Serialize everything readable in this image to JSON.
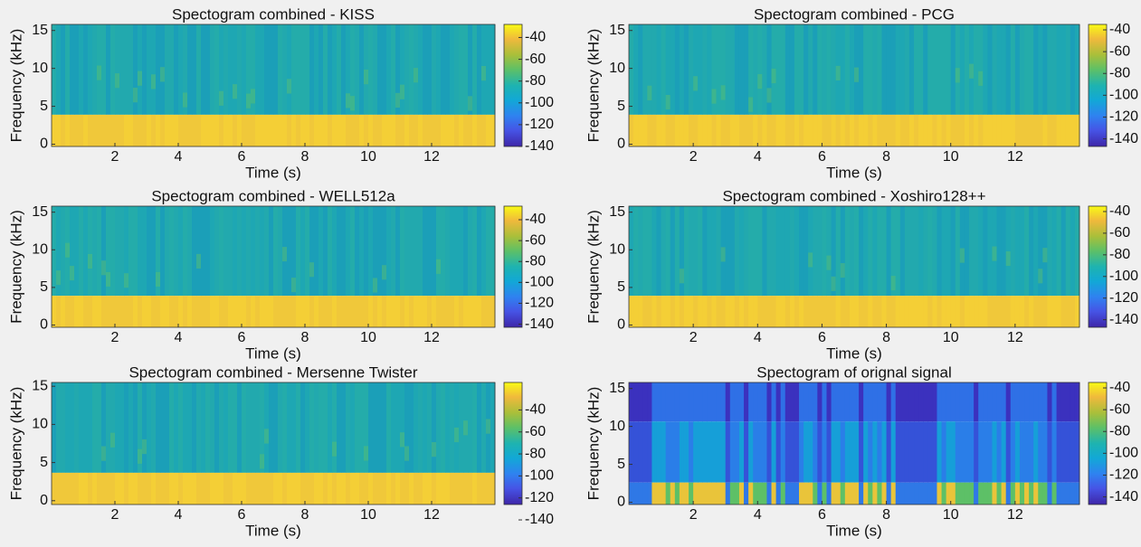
{
  "chart_data": [
    {
      "type": "spectrogram",
      "title": "Spectogram combined - KISS",
      "xlabel": "Time (s)",
      "ylabel": "Frequency (kHz)",
      "xlim": [
        0,
        14
      ],
      "xticks": [
        2,
        4,
        6,
        8,
        10,
        12
      ],
      "ylim": [
        -0.3,
        15.8
      ],
      "yticks": [
        0,
        5,
        10,
        15
      ],
      "clim": [
        -140,
        -28
      ],
      "cticks": [
        -40,
        -60,
        -80,
        -100,
        -120,
        -140
      ]
    },
    {
      "type": "spectrogram",
      "title": "Spectogram combined - PCG",
      "xlabel": "Time (s)",
      "ylabel": "Frequency (kHz)",
      "xlim": [
        0,
        14
      ],
      "xticks": [
        2,
        4,
        6,
        8,
        10,
        12
      ],
      "ylim": [
        -0.3,
        15.8
      ],
      "yticks": [
        0,
        5,
        10,
        15
      ],
      "clim": [
        -147,
        -35
      ],
      "cticks": [
        -40,
        -60,
        -80,
        -100,
        -120,
        -140
      ]
    },
    {
      "type": "spectrogram",
      "title": "Spectogram combined - WELL512a",
      "xlabel": "Time (s)",
      "ylabel": "Frequency (kHz)",
      "xlim": [
        0,
        14
      ],
      "xticks": [
        2,
        4,
        6,
        8,
        10,
        12
      ],
      "ylim": [
        -0.3,
        15.8
      ],
      "yticks": [
        0,
        5,
        10,
        15
      ],
      "clim": [
        -143,
        -27
      ],
      "cticks": [
        -40,
        -60,
        -80,
        -100,
        -120,
        -140
      ]
    },
    {
      "type": "spectrogram",
      "title": "Spectogram combined - Xoshiro128++",
      "xlabel": "Time (s)",
      "ylabel": "Frequency (kHz)",
      "xlim": [
        0,
        14
      ],
      "xticks": [
        2,
        4,
        6,
        8,
        10,
        12
      ],
      "ylim": [
        -0.3,
        15.8
      ],
      "yticks": [
        0,
        5,
        10,
        15
      ],
      "clim": [
        -147,
        -35
      ],
      "cticks": [
        -40,
        -60,
        -80,
        -100,
        -120,
        -140
      ]
    },
    {
      "type": "spectrogram",
      "title": "Spectogram combined - Mersenne Twister",
      "xlabel": "Time (s)",
      "ylabel": "Frequency (kHz)",
      "xlim": [
        0,
        14
      ],
      "xticks": [
        2,
        4,
        6,
        8,
        10,
        12
      ],
      "ylim": [
        -0.5,
        15.5
      ],
      "yticks": [
        0,
        5,
        10,
        15
      ],
      "clim": [
        -126,
        -15
      ],
      "cticks": [
        -40,
        -60,
        -80,
        -100,
        -120,
        -140
      ]
    },
    {
      "type": "spectrogram",
      "title": "Spectogram of orignal signal",
      "xlabel": "Time (s)",
      "ylabel": "Frequency (kHz)",
      "xlim": [
        0,
        14
      ],
      "xticks": [
        2,
        4,
        6,
        8,
        10,
        12
      ],
      "ylim": [
        -0.3,
        15.8
      ],
      "yticks": [
        0,
        5,
        10,
        15
      ],
      "clim": [
        -147,
        -35
      ],
      "cticks": [
        -40,
        -60,
        -80,
        -100,
        -120,
        -140
      ]
    }
  ]
}
